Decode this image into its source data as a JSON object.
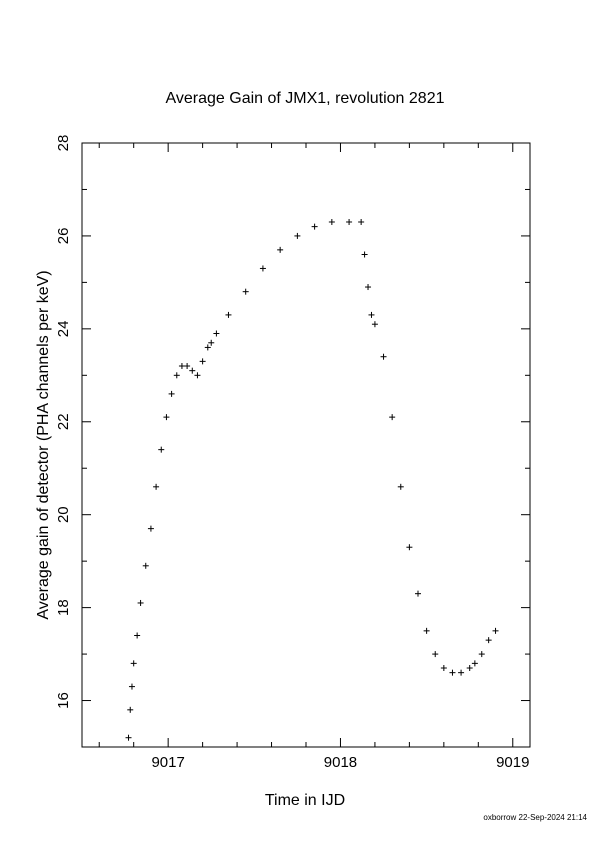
{
  "title": "Average Gain of JMX1, revolution 2821",
  "footer": "oxborrow 22-Sep-2024 21:14",
  "chart_data": {
    "type": "scatter",
    "marker": "plus",
    "title": "Average Gain of JMX1, revolution 2821",
    "xlabel": "Time in IJD",
    "ylabel": "Average gain of detector (PHA channels per keV)",
    "xlim": [
      9016.5,
      9019.1
    ],
    "ylim": [
      15,
      28
    ],
    "xticks": [
      9017,
      9018,
      9019
    ],
    "yticks": [
      16,
      18,
      20,
      22,
      24,
      26,
      28
    ],
    "grid": false,
    "legend": "none",
    "colors": {
      "marker": "#000000",
      "axes": "#000000"
    },
    "series": [
      {
        "x": [
          9016.77,
          9016.78,
          9016.79,
          9016.8,
          9016.82,
          9016.84,
          9016.87,
          9016.9,
          9016.93,
          9016.96,
          9016.99,
          9017.02,
          9017.05,
          9017.08,
          9017.11,
          9017.14,
          9017.17,
          9017.2,
          9017.23,
          9017.25,
          9017.28,
          9017.35,
          9017.45,
          9017.55,
          9017.65,
          9017.75,
          9017.85,
          9017.95,
          9018.05,
          9018.12,
          9018.14,
          9018.16,
          9018.18,
          9018.2,
          9018.25,
          9018.3,
          9018.35,
          9018.4,
          9018.45,
          9018.5,
          9018.55,
          9018.6,
          9018.65,
          9018.7,
          9018.75,
          9018.78,
          9018.82,
          9018.86,
          9018.9
        ],
        "y": [
          15.2,
          15.8,
          16.3,
          16.8,
          17.4,
          18.1,
          18.9,
          19.7,
          20.6,
          21.4,
          22.1,
          22.6,
          23.0,
          23.2,
          23.2,
          23.1,
          23.0,
          23.3,
          23.6,
          23.7,
          23.9,
          24.3,
          24.8,
          25.3,
          25.7,
          26.0,
          26.2,
          26.3,
          26.3,
          26.3,
          25.6,
          24.9,
          24.3,
          24.1,
          23.4,
          22.1,
          20.6,
          19.3,
          18.3,
          17.5,
          17.0,
          16.7,
          16.6,
          16.6,
          16.7,
          16.8,
          17.0,
          17.3,
          17.5
        ]
      }
    ]
  }
}
